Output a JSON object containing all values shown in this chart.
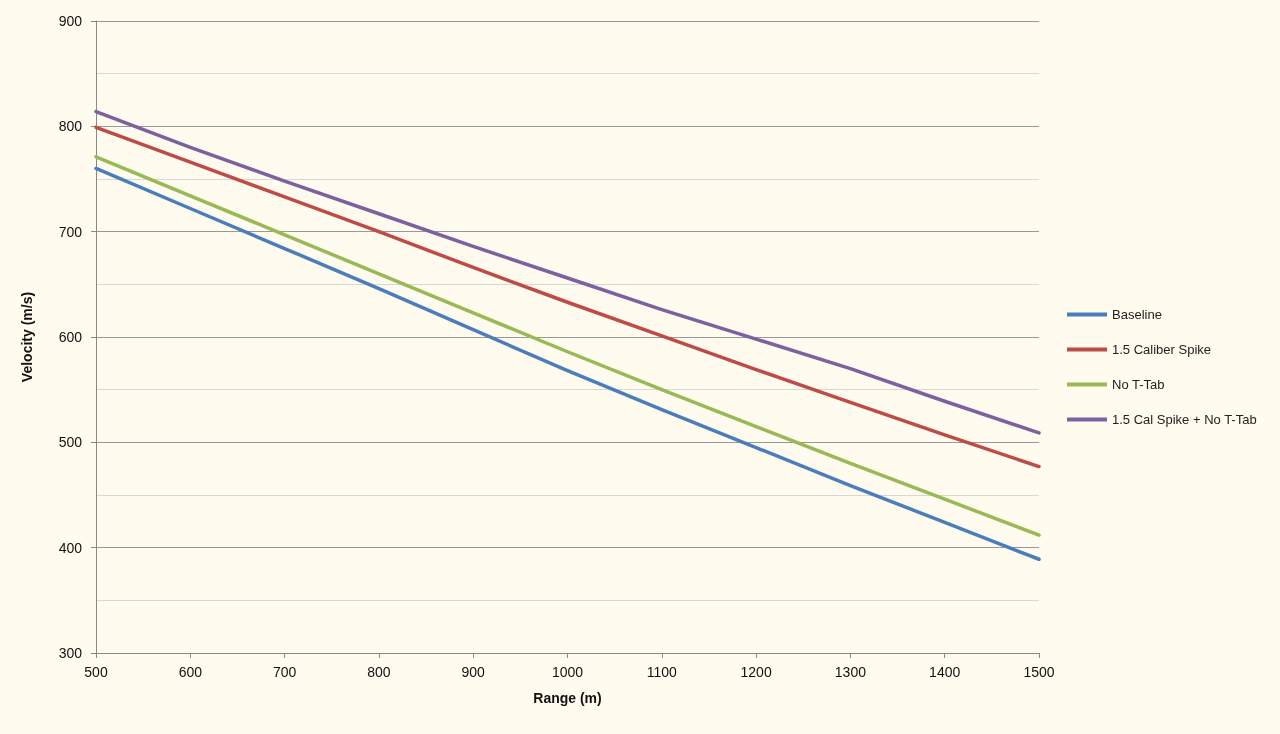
{
  "chart_data": {
    "type": "line",
    "xlabel": "Range (m)",
    "ylabel": "Velocity (m/s)",
    "x": [
      500,
      600,
      700,
      800,
      900,
      1000,
      1100,
      1200,
      1300,
      1400,
      1500
    ],
    "series": [
      {
        "name": "Baseline",
        "color": "#4a7ebb",
        "values": [
          760,
          722,
          684,
          646,
          607,
          568,
          531,
          495,
          459,
          424,
          389
        ]
      },
      {
        "name": "1.5 Caliber Spike",
        "color": "#be4b48",
        "values": [
          799,
          766,
          733,
          700,
          666,
          633,
          601,
          569,
          538,
          507,
          477
        ]
      },
      {
        "name": "No T-Tab",
        "color": "#98b954",
        "values": [
          771,
          734,
          697,
          660,
          623,
          586,
          550,
          515,
          480,
          446,
          412
        ]
      },
      {
        "name": "1.5 Cal Spike + No T-Tab",
        "color": "#7d60a0",
        "values": [
          814,
          780,
          748,
          717,
          686,
          656,
          626,
          598,
          570,
          539,
          509
        ]
      }
    ],
    "xlim": [
      500,
      1500
    ],
    "xticks": [
      500,
      600,
      700,
      800,
      900,
      1000,
      1100,
      1200,
      1300,
      1400,
      1500
    ],
    "ylim": [
      300,
      900
    ],
    "yticks": [
      300,
      400,
      500,
      600,
      700,
      800,
      900
    ],
    "grid": "y",
    "legend": "right",
    "marker": "none",
    "line_style": "solid"
  }
}
